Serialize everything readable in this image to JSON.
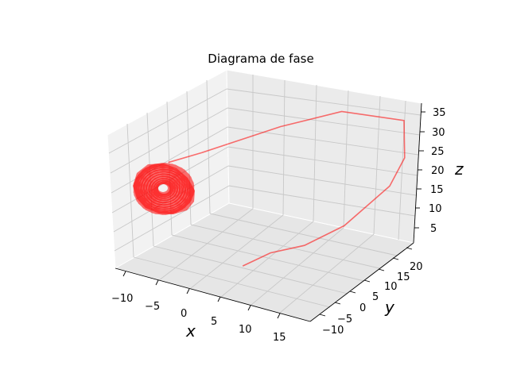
{
  "chart_data": {
    "type": "line",
    "projection": "3d",
    "title": "Diagrama de fase",
    "xlabel": "x",
    "ylabel": "y",
    "zlabel": "z",
    "xticks": [
      "−10",
      "−5",
      "0",
      "5",
      "10",
      "15"
    ],
    "yticks": [
      "−10",
      "−5",
      "0",
      "5",
      "10",
      "15",
      "20"
    ],
    "zticks": [
      "5",
      "10",
      "15",
      "20",
      "25",
      "30",
      "35"
    ],
    "grid": true,
    "series": [
      {
        "color": "#ff0000",
        "alpha": 0.55,
        "attractor": "dense spiral around x≈-8, y≈-8, z≈27"
      }
    ],
    "transient": [
      {
        "x": 1,
        "y": -1,
        "z": 1
      },
      {
        "x": 4,
        "y": 2,
        "z": 4
      },
      {
        "x": 8,
        "y": 5,
        "z": 6
      },
      {
        "x": 12,
        "y": 10,
        "z": 10
      },
      {
        "x": 16,
        "y": 17,
        "z": 18
      },
      {
        "x": 17,
        "y": 20,
        "z": 24
      },
      {
        "x": 16,
        "y": 22,
        "z": 32
      },
      {
        "x": 8,
        "y": 18,
        "z": 33
      },
      {
        "x": 2,
        "y": 10,
        "z": 31
      },
      {
        "x": -2,
        "y": 4,
        "z": 29
      },
      {
        "x": -5,
        "y": -2,
        "z": 28
      },
      {
        "x": -8,
        "y": -7,
        "z": 27
      }
    ]
  }
}
